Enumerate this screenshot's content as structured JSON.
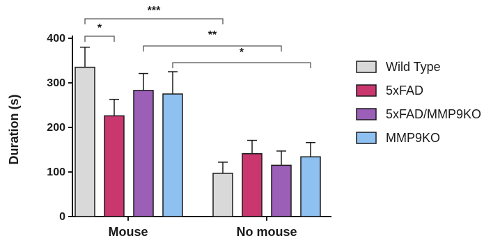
{
  "chart_data": {
    "type": "bar",
    "ylabel": "Duration (s)",
    "xlabel": "",
    "ylim": [
      0,
      400
    ],
    "yticks": [
      0,
      100,
      200,
      300,
      400
    ],
    "categories": [
      "Mouse",
      "No mouse"
    ],
    "series": [
      {
        "name": "Wild Type",
        "color": "#d9d9d9",
        "values": [
          335,
          97
        ],
        "errors": [
          45,
          25
        ]
      },
      {
        "name": "5xFAD",
        "color": "#c9376e",
        "values": [
          226,
          141
        ],
        "errors": [
          37,
          30
        ]
      },
      {
        "name": "5xFAD/MMP9KO",
        "color": "#9b5fb7",
        "values": [
          283,
          115
        ],
        "errors": [
          38,
          32
        ]
      },
      {
        "name": "MMP9KO",
        "color": "#8ec0f0",
        "values": [
          275,
          134
        ],
        "errors": [
          50,
          32
        ]
      }
    ],
    "significance": [
      {
        "label": "***",
        "from": "Mouse / Wild Type",
        "to": "No mouse / Wild Type"
      },
      {
        "label": "*",
        "from": "Mouse / Wild Type",
        "to": "Mouse / 5xFAD"
      },
      {
        "label": "**",
        "from": "Mouse / 5xFAD/MMP9KO",
        "to": "No mouse / 5xFAD/MMP9KO"
      },
      {
        "label": "*",
        "from": "Mouse / MMP9KO",
        "to": "No mouse / MMP9KO"
      }
    ],
    "legend_position": "right",
    "grid": false
  }
}
